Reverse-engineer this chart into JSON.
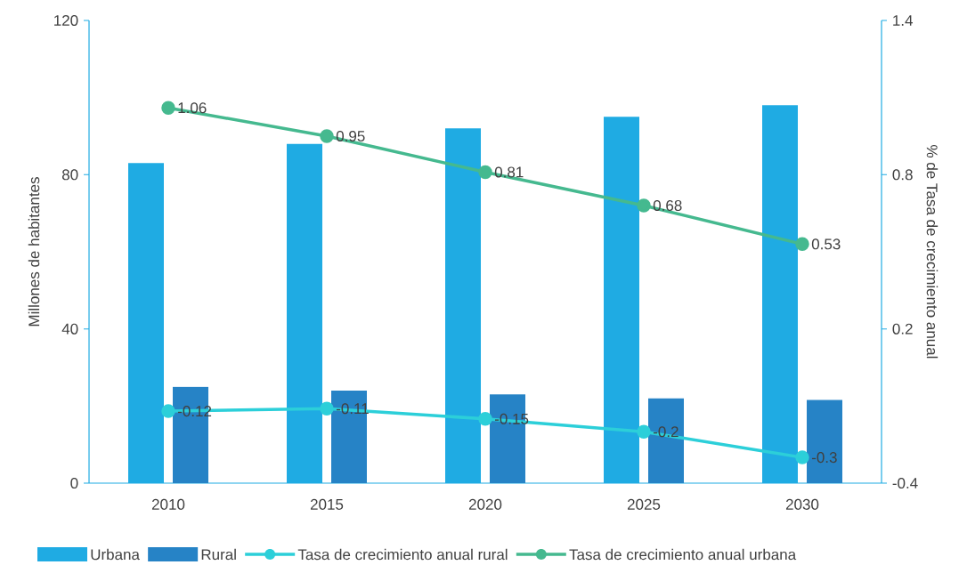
{
  "chart_data": {
    "type": "bar",
    "categories": [
      "2010",
      "2015",
      "2020",
      "2025",
      "2030"
    ],
    "ylabel": "Millones de habitantes",
    "y2label": "% de Tasa de crecimiento anual",
    "ylim": [
      0,
      120
    ],
    "yticks": [
      0,
      40,
      80,
      120
    ],
    "y2lim": [
      -0.4,
      1.4
    ],
    "y2ticks": [
      -0.4,
      0.2,
      0.8,
      1.4
    ],
    "grid": false,
    "legend": "bottom",
    "marker": "circle",
    "series": [
      {
        "name": "Urbana",
        "color": "#1fabe3",
        "values": [
          83,
          88,
          92,
          95,
          98
        ]
      },
      {
        "name": "Rural",
        "color": "#2683c6",
        "values": [
          25,
          24,
          23,
          22,
          21.6
        ]
      },
      {
        "name": "Tasa de crecimiento anual rural",
        "type": "line",
        "axis": "y2",
        "color": "#2ccfd9",
        "values": [
          -0.12,
          -0.11,
          -0.15,
          -0.2,
          -0.3
        ],
        "value_labels": [
          "-0.12",
          "-0.11",
          "-0.15",
          "-0.2",
          "-0.3"
        ]
      },
      {
        "name": "Tasa de crecimiento anual urbana",
        "type": "line",
        "axis": "y2",
        "color": "#45b98f",
        "values": [
          1.06,
          0.95,
          0.81,
          0.68,
          0.53
        ],
        "value_labels": [
          "1.06",
          "0.95",
          "0.81",
          "0.68",
          "0.53"
        ]
      }
    ]
  }
}
